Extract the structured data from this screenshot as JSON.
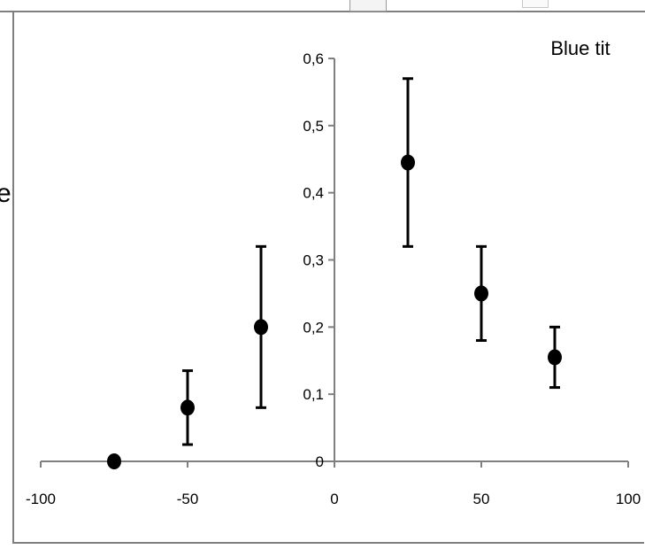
{
  "chart_data": {
    "type": "scatter",
    "title": "Blue tit",
    "xlabel": "",
    "ylabel": "",
    "xlim": [
      -100,
      100
    ],
    "ylim": [
      0,
      0.6
    ],
    "x_ticks": [
      {
        "value": -100,
        "label": "-100"
      },
      {
        "value": -50,
        "label": "-50"
      },
      {
        "value": 0,
        "label": "0"
      },
      {
        "value": 50,
        "label": "50"
      },
      {
        "value": 100,
        "label": "100"
      }
    ],
    "y_ticks": [
      {
        "value": 0,
        "label": "0"
      },
      {
        "value": 0.1,
        "label": "0,1"
      },
      {
        "value": 0.2,
        "label": "0,2"
      },
      {
        "value": 0.3,
        "label": "0,3"
      },
      {
        "value": 0.4,
        "label": "0,4"
      },
      {
        "value": 0.5,
        "label": "0,5"
      },
      {
        "value": 0.6,
        "label": "0,6"
      }
    ],
    "grid": false,
    "legend": "none",
    "marker_color": "#000000",
    "axis_color": "#7f7f7f",
    "points": [
      {
        "x": -75,
        "y": 0.0,
        "err_low": 0.0,
        "err_high": 0.0
      },
      {
        "x": -50,
        "y": 0.08,
        "err_low": 0.025,
        "err_high": 0.135
      },
      {
        "x": -25,
        "y": 0.2,
        "err_low": 0.08,
        "err_high": 0.32
      },
      {
        "x": 25,
        "y": 0.445,
        "err_low": 0.32,
        "err_high": 0.57
      },
      {
        "x": 50,
        "y": 0.25,
        "err_low": 0.18,
        "err_high": 0.32
      },
      {
        "x": 75,
        "y": 0.155,
        "err_low": 0.11,
        "err_high": 0.2
      }
    ]
  },
  "page": {
    "left_glyph": "e"
  }
}
